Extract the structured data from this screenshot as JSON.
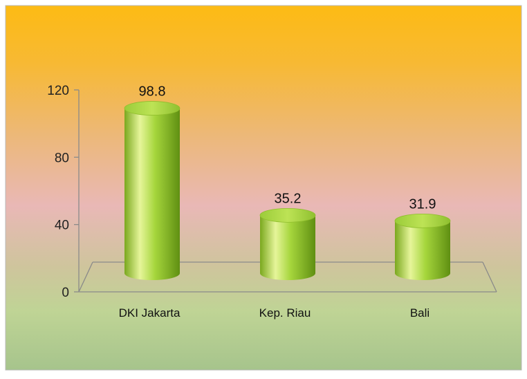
{
  "chart_data": {
    "type": "bar",
    "style": "3d-cylinder",
    "categories": [
      "DKI Jakarta",
      "Kep. Riau",
      "Bali"
    ],
    "values": [
      98.8,
      35.2,
      31.9
    ],
    "value_labels": [
      "98.8",
      "35.2",
      "31.9"
    ],
    "title": "",
    "xlabel": "",
    "ylabel": "",
    "ylim": [
      0,
      120
    ],
    "yticks": [
      0,
      40,
      80,
      120
    ],
    "ytick_labels": [
      "0",
      "40",
      "80",
      "120"
    ],
    "grid": false,
    "legend": "none",
    "colors": {
      "bar_light": "#e6f59a",
      "bar_mid": "#a6d63c",
      "bar_dark": "#5f8f12",
      "bar_top": "#b7e24e",
      "background_top": "#fdbb14",
      "background_middle": "#e9b8b6",
      "background_bottom": "#a6c48c"
    }
  }
}
